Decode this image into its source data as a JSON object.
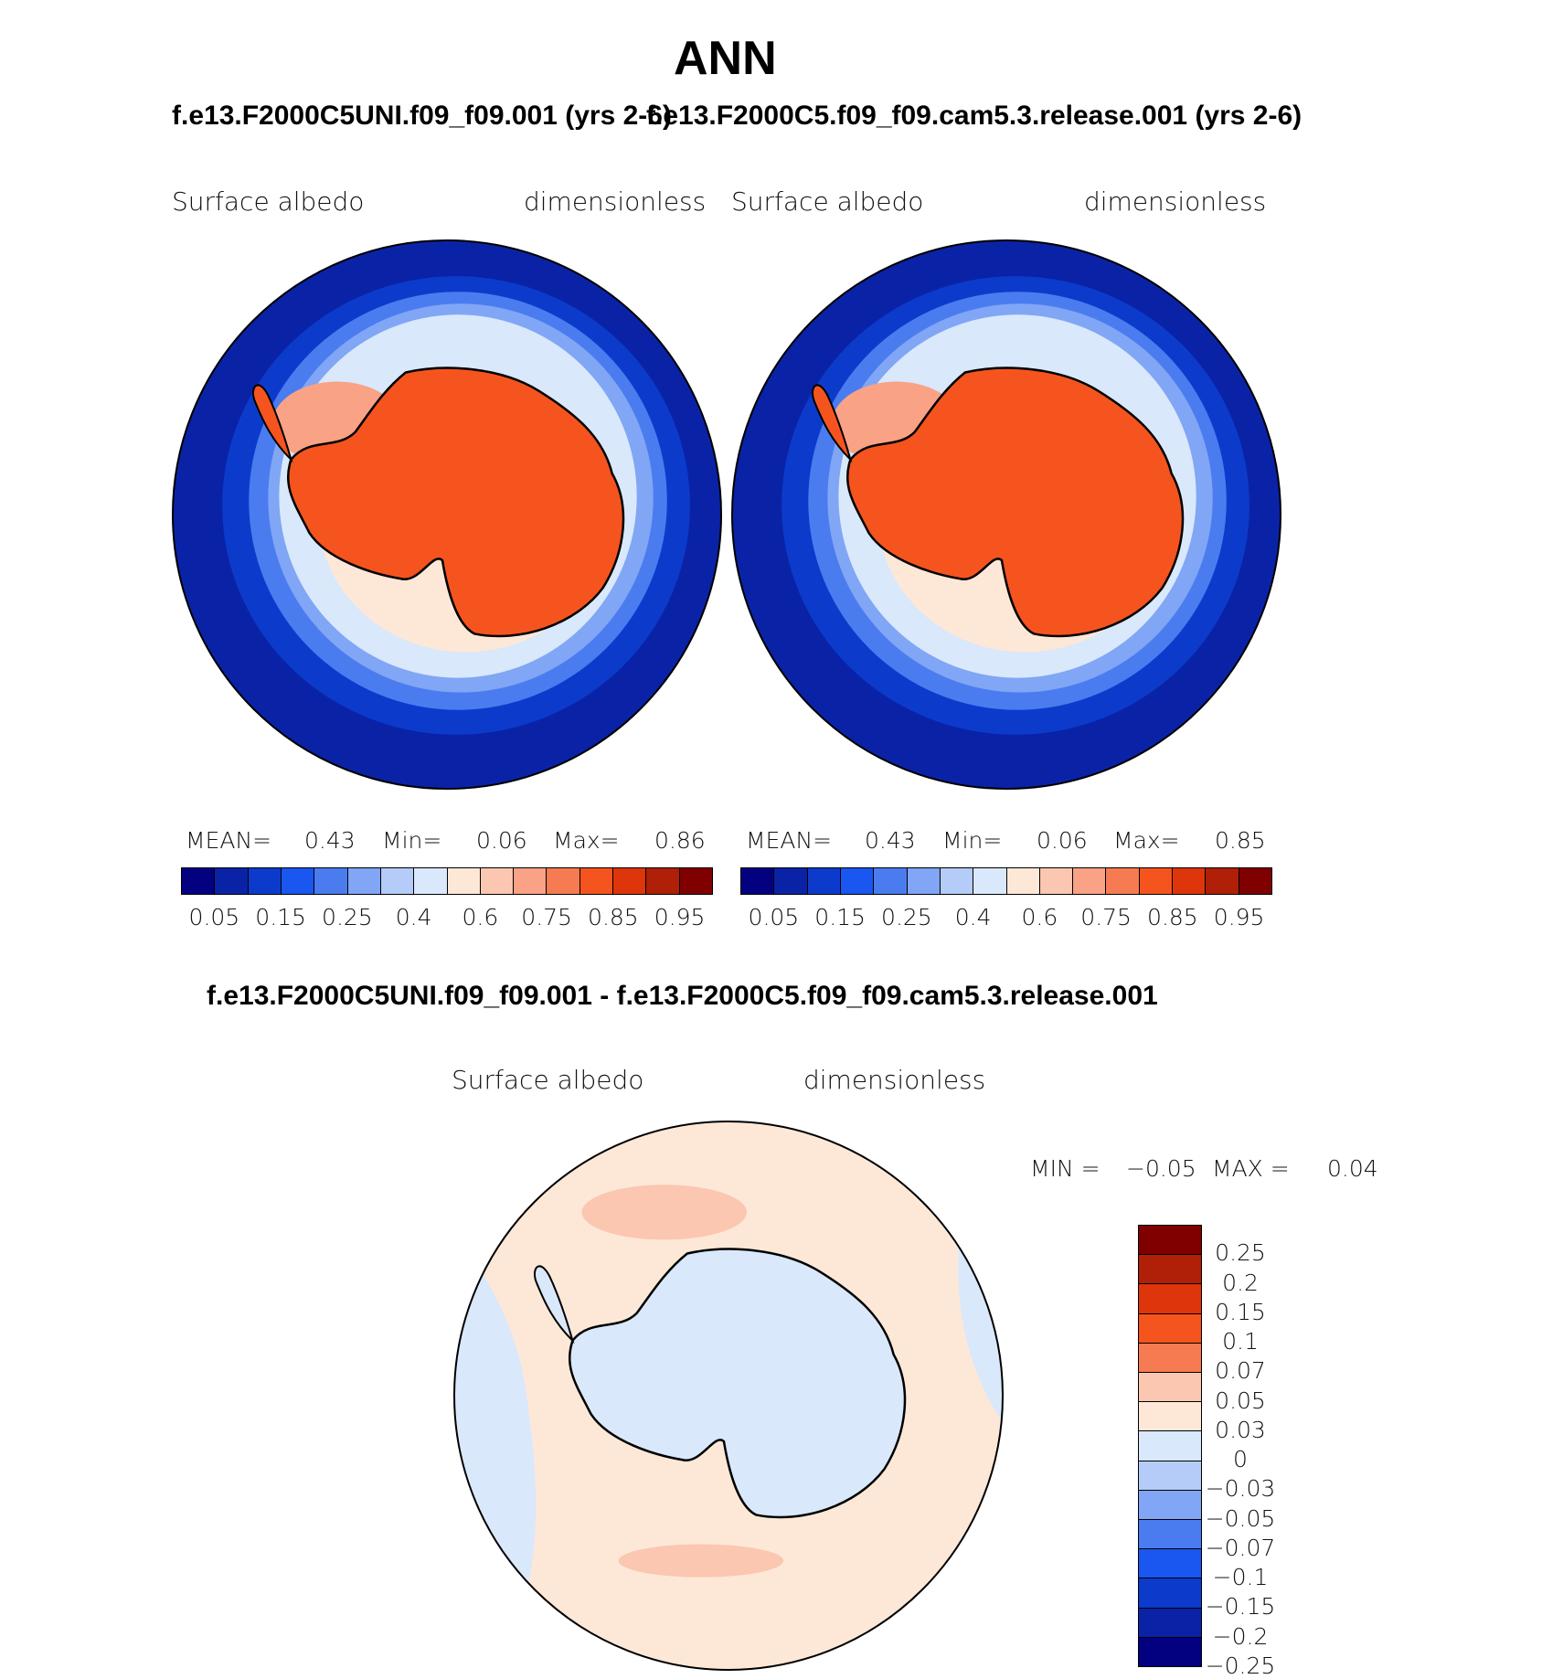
{
  "figure": {
    "title": "ANN",
    "panel_left_title": "f.e13.F2000C5UNI.f09_f09.001 (yrs 2-6)",
    "panel_right_title": "f.e13.F2000C5.f09_f09.cam5.3.release.001 (yrs 2-6)",
    "diff_title": "f.e13.F2000C5UNI.f09_f09.001 - f.e13.F2000C5.f09_f09.cam5.3.release.001"
  },
  "panels": [
    {
      "variable": "Surface  albedo",
      "units": "dimensionless",
      "mean_label": "MEAN=",
      "mean_value": "0.43",
      "min_label": "Min=",
      "min_value": "0.06",
      "max_label": "Max=",
      "max_value": "0.86"
    },
    {
      "variable": "Surface  albedo",
      "units": "dimensionless",
      "mean_label": "MEAN=",
      "mean_value": "0.43",
      "min_label": "Min=",
      "min_value": "0.06",
      "max_label": "Max=",
      "max_value": "0.85"
    },
    {
      "variable": "Surface  albedo",
      "units": "dimensionless",
      "min_label": "MIN =",
      "min_value": "−0.05",
      "max_label": "MAX =",
      "max_value": "0.04"
    }
  ],
  "abs_colorbar": {
    "colors": [
      "#030180",
      "#0a23a6",
      "#0c3bcc",
      "#1a56f0",
      "#4a7cf0",
      "#80a6f5",
      "#b4ccf7",
      "#d9e8fb",
      "#fde8d8",
      "#fbc7b0",
      "#f9a286",
      "#f77b52",
      "#f5541f",
      "#de350a",
      "#b01f07",
      "#800000"
    ],
    "labels": [
      "0.05",
      "0.15",
      "0.25",
      "0.4",
      "0.6",
      "0.75",
      "0.85",
      "0.95"
    ]
  },
  "diff_colorbar": {
    "colors": [
      "#800000",
      "#b01f07",
      "#de350a",
      "#f5541f",
      "#f77b52",
      "#fbc7b0",
      "#fde8d8",
      "#d9e8fb",
      "#b4ccf7",
      "#80a6f5",
      "#4a7cf0",
      "#1a56f0",
      "#0c3bcc",
      "#0a23a6",
      "#030180"
    ],
    "labels": [
      "0.25",
      "0.2",
      "0.15",
      "0.1",
      "0.07",
      "0.05",
      "0.03",
      "0",
      "−0.03",
      "−0.05",
      "−0.07",
      "−0.1",
      "−0.15",
      "−0.2",
      "−0.25"
    ]
  }
}
